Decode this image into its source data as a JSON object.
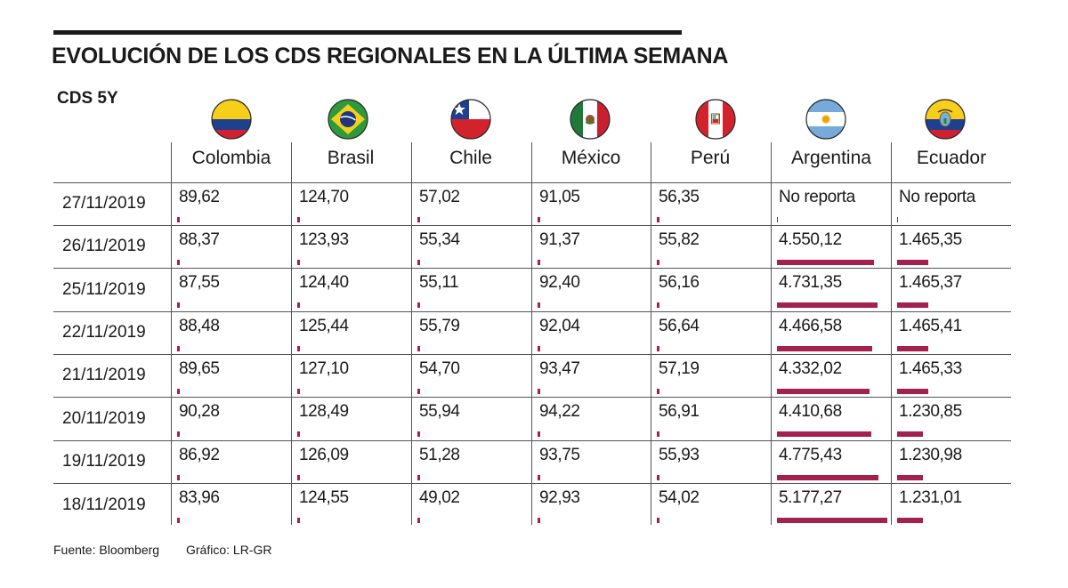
{
  "title": "EVOLUCIÓN DE LOS CDS REGIONALES EN LA ÚLTIMA SEMANA",
  "subtitle": "CDS 5Y",
  "footer": {
    "source": "Fuente: Bloomberg",
    "graphic": "Gráfico: LR-GR"
  },
  "colors": {
    "bar": "#a3204f",
    "rule": "#1a1a1a",
    "grid": "#555555"
  },
  "flag_icons": [
    "colombia-flag-icon",
    "brazil-flag-icon",
    "chile-flag-icon",
    "mexico-flag-icon",
    "peru-flag-icon",
    "argentina-flag-icon",
    "ecuador-flag-icon"
  ],
  "chart_data": {
    "type": "table",
    "title": "EVOLUCIÓN DE LOS CDS REGIONALES EN LA ÚLTIMA SEMANA",
    "subtitle": "CDS 5Y",
    "categories": [
      "Colombia",
      "Brasil",
      "Chile",
      "México",
      "Perú",
      "Argentina",
      "Ecuador"
    ],
    "dates": [
      "27/11/2019",
      "26/11/2019",
      "25/11/2019",
      "22/11/2019",
      "21/11/2019",
      "20/11/2019",
      "19/11/2019",
      "18/11/2019"
    ],
    "bar_scale_max": 5177.27,
    "series": [
      {
        "name": "Colombia",
        "labels": [
          "89,62",
          "88,37",
          "87,55",
          "88,48",
          "89,65",
          "90,28",
          "86,92",
          "83,96"
        ],
        "values": [
          89.62,
          88.37,
          87.55,
          88.48,
          89.65,
          90.28,
          86.92,
          83.96
        ]
      },
      {
        "name": "Brasil",
        "labels": [
          "124,70",
          "123,93",
          "124,40",
          "125,44",
          "127,10",
          "128,49",
          "126,09",
          "124,55"
        ],
        "values": [
          124.7,
          123.93,
          124.4,
          125.44,
          127.1,
          128.49,
          126.09,
          124.55
        ]
      },
      {
        "name": "Chile",
        "labels": [
          "57,02",
          "55,34",
          "55,11",
          "55,79",
          "54,70",
          "55,94",
          "51,28",
          "49,02"
        ],
        "values": [
          57.02,
          55.34,
          55.11,
          55.79,
          54.7,
          55.94,
          51.28,
          49.02
        ]
      },
      {
        "name": "México",
        "labels": [
          "91,05",
          "91,37",
          "92,40",
          "92,04",
          "93,47",
          "94,22",
          "93,75",
          "92,93"
        ],
        "values": [
          91.05,
          91.37,
          92.4,
          92.04,
          93.47,
          94.22,
          93.75,
          92.93
        ]
      },
      {
        "name": "Perú",
        "labels": [
          "56,35",
          "55,82",
          "56,16",
          "56,64",
          "57,19",
          "56,91",
          "55,93",
          "54,02"
        ],
        "values": [
          56.35,
          55.82,
          56.16,
          56.64,
          57.19,
          56.91,
          55.93,
          54.02
        ]
      },
      {
        "name": "Argentina",
        "labels": [
          "No reporta",
          "4.550,12",
          "4.731,35",
          "4.466,58",
          "4.332,02",
          "4.410,68",
          "4.775,43",
          "5.177,27"
        ],
        "values": [
          null,
          4550.12,
          4731.35,
          4466.58,
          4332.02,
          4410.68,
          4775.43,
          5177.27
        ]
      },
      {
        "name": "Ecuador",
        "labels": [
          "No reporta",
          "1.465,35",
          "1.465,37",
          "1.465,41",
          "1.465,33",
          "1.230,85",
          "1.230,98",
          "1.231,01"
        ],
        "values": [
          null,
          1465.35,
          1465.37,
          1465.41,
          1465.33,
          1230.85,
          1230.98,
          1231.01
        ]
      }
    ]
  }
}
